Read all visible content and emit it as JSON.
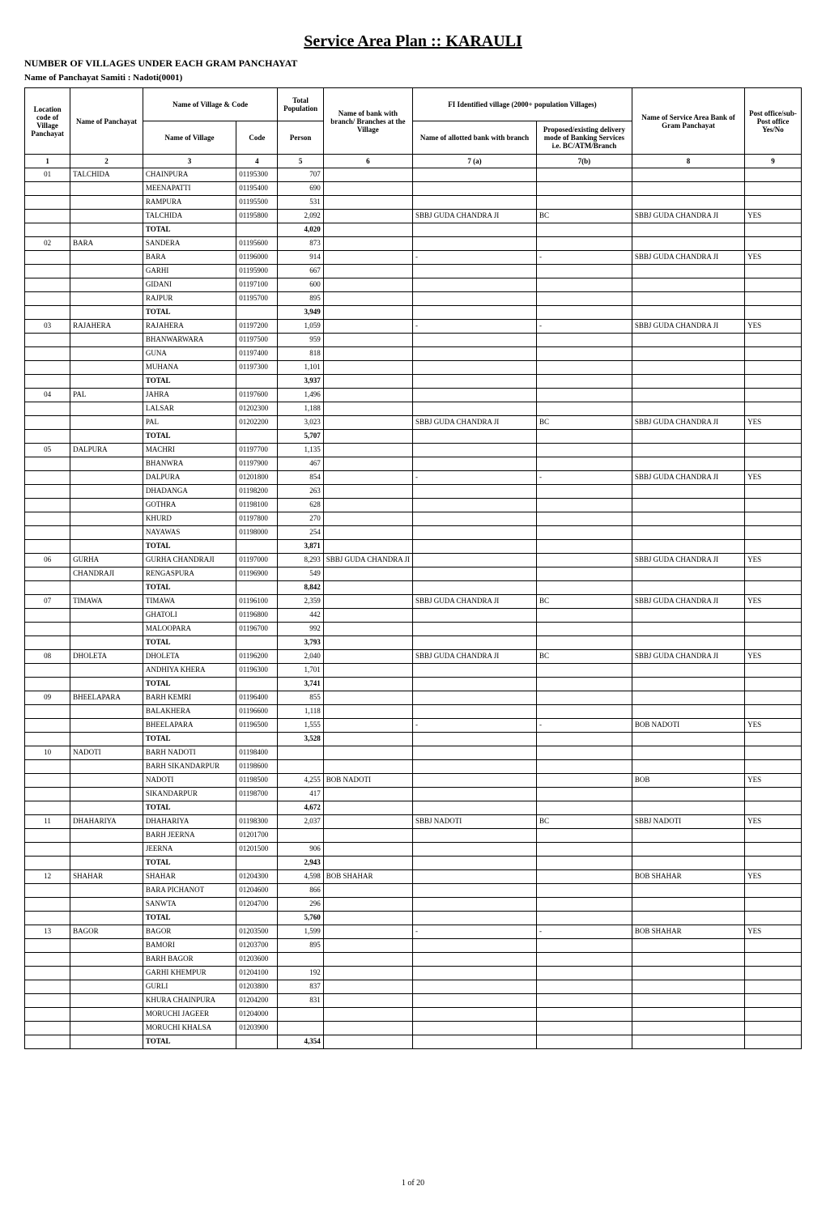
{
  "title": "Service Area Plan :: KARAULI",
  "subtitle": "NUMBER OF VILLAGES UNDER EACH GRAM PANCHAYAT",
  "samiti": "Name of Panchayat Samiti :  Nadoti(0001)",
  "footer": "1 of 20",
  "headers": {
    "h1": "Location code of Village Panchayat",
    "h2": "Name of Panchayat",
    "h34_top": "Name of Village  &  Code",
    "h3": "Name of Village",
    "h4": "Code",
    "h5_top": "Total Population",
    "h5": "Person",
    "h6_top": "Name of  bank with branch/ Branches at the Village",
    "h7_top": "FI Identified village (2000+ population Villages)",
    "h7a": "Name of allotted bank with branch",
    "h7b": "Proposed/existing delivery mode of Banking Services i.e. BC/ATM/Branch",
    "h8_top": "Name of Service Area Bank of Gram Panchayat",
    "h9_top": "Post office/sub-Post office Yes/No",
    "n1": "1",
    "n2": "2",
    "n3": "3",
    "n4": "4",
    "n5": "5",
    "n6": "6",
    "n7a": "7 (a)",
    "n7b": "7(b)",
    "n8": "8",
    "n9": "9"
  },
  "rows": [
    {
      "c1": "01",
      "c2": "TALCHIDA",
      "c3": "CHAINPURA",
      "c4": "01195300",
      "c5": "707",
      "c6": "",
      "c7a": "",
      "c7b": "",
      "c8": "",
      "c9": ""
    },
    {
      "c1": "",
      "c2": "",
      "c3": "MEENAPATTI",
      "c4": "01195400",
      "c5": "690",
      "c6": "",
      "c7a": "",
      "c7b": "",
      "c8": "",
      "c9": ""
    },
    {
      "c1": "",
      "c2": "",
      "c3": "RAMPURA",
      "c4": "01195500",
      "c5": "531",
      "c6": "",
      "c7a": "",
      "c7b": "",
      "c8": "",
      "c9": ""
    },
    {
      "c1": "",
      "c2": "",
      "c3": "TALCHIDA",
      "c4": "01195800",
      "c5": "2,092",
      "c6": "",
      "c7a": "SBBJ GUDA CHANDRA JI",
      "c7b": "BC",
      "c8": "SBBJ GUDA CHANDRA JI",
      "c9": "YES"
    },
    {
      "bold": true,
      "c1": "",
      "c2": "",
      "c3": "TOTAL",
      "c4": "",
      "c5": "4,020",
      "c6": "",
      "c7a": "",
      "c7b": "",
      "c8": "",
      "c9": ""
    },
    {
      "c1": "02",
      "c2": "BARA",
      "c3": "SANDERA",
      "c4": "01195600",
      "c5": "873",
      "c6": "",
      "c7a": "",
      "c7b": "",
      "c8": "",
      "c9": ""
    },
    {
      "c1": "",
      "c2": "",
      "c3": "BARA",
      "c4": "01196000",
      "c5": "914",
      "c6": "",
      "c7a": "-",
      "c7b": "-",
      "c8": "SBBJ GUDA CHANDRA JI",
      "c9": "YES"
    },
    {
      "c1": "",
      "c2": "",
      "c3": "GARHI",
      "c4": "01195900",
      "c5": "667",
      "c6": "",
      "c7a": "",
      "c7b": "",
      "c8": "",
      "c9": ""
    },
    {
      "c1": "",
      "c2": "",
      "c3": "GIDANI",
      "c4": "01197100",
      "c5": "600",
      "c6": "",
      "c7a": "",
      "c7b": "",
      "c8": "",
      "c9": ""
    },
    {
      "c1": "",
      "c2": "",
      "c3": "RAJPUR",
      "c4": "01195700",
      "c5": "895",
      "c6": "",
      "c7a": "",
      "c7b": "",
      "c8": "",
      "c9": ""
    },
    {
      "bold": true,
      "c1": "",
      "c2": "",
      "c3": "TOTAL",
      "c4": "",
      "c5": "3,949",
      "c6": "",
      "c7a": "",
      "c7b": "",
      "c8": "",
      "c9": ""
    },
    {
      "c1": "03",
      "c2": "RAJAHERA",
      "c3": "RAJAHERA",
      "c4": "01197200",
      "c5": "1,059",
      "c6": "",
      "c7a": "-",
      "c7b": "-",
      "c8": "SBBJ GUDA CHANDRA JI",
      "c9": "YES"
    },
    {
      "c1": "",
      "c2": "",
      "c3": "BHANWARWARA",
      "c4": "01197500",
      "c5": "959",
      "c6": "",
      "c7a": "",
      "c7b": "",
      "c8": "",
      "c9": ""
    },
    {
      "c1": "",
      "c2": "",
      "c3": "GUNA",
      "c4": "01197400",
      "c5": "818",
      "c6": "",
      "c7a": "",
      "c7b": "",
      "c8": "",
      "c9": ""
    },
    {
      "c1": "",
      "c2": "",
      "c3": "MUHANA",
      "c4": "01197300",
      "c5": "1,101",
      "c6": "",
      "c7a": "",
      "c7b": "",
      "c8": "",
      "c9": ""
    },
    {
      "bold": true,
      "c1": "",
      "c2": "",
      "c3": "TOTAL",
      "c4": "",
      "c5": "3,937",
      "c6": "",
      "c7a": "",
      "c7b": "",
      "c8": "",
      "c9": ""
    },
    {
      "c1": "04",
      "c2": "PAL",
      "c3": "JAHRA",
      "c4": "01197600",
      "c5": "1,496",
      "c6": "",
      "c7a": "",
      "c7b": "",
      "c8": "",
      "c9": ""
    },
    {
      "c1": "",
      "c2": "",
      "c3": "LALSAR",
      "c4": "01202300",
      "c5": "1,188",
      "c6": "",
      "c7a": "",
      "c7b": "",
      "c8": "",
      "c9": ""
    },
    {
      "c1": "",
      "c2": "",
      "c3": "PAL",
      "c4": "01202200",
      "c5": "3,023",
      "c6": "",
      "c7a": "SBBJ GUDA CHANDRA JI",
      "c7b": "BC",
      "c8": "SBBJ GUDA CHANDRA JI",
      "c9": "YES"
    },
    {
      "bold": true,
      "c1": "",
      "c2": "",
      "c3": "TOTAL",
      "c4": "",
      "c5": "5,707",
      "c6": "",
      "c7a": "",
      "c7b": "",
      "c8": "",
      "c9": ""
    },
    {
      "c1": "05",
      "c2": "DALPURA",
      "c3": "MACHRI",
      "c4": "01197700",
      "c5": "1,135",
      "c6": "",
      "c7a": "",
      "c7b": "",
      "c8": "",
      "c9": ""
    },
    {
      "c1": "",
      "c2": "",
      "c3": "BHANWRA",
      "c4": "01197900",
      "c5": "467",
      "c6": "",
      "c7a": "",
      "c7b": "",
      "c8": "",
      "c9": ""
    },
    {
      "c1": "",
      "c2": "",
      "c3": "DALPURA",
      "c4": "01201800",
      "c5": "854",
      "c6": "",
      "c7a": "-",
      "c7b": "-",
      "c8": "SBBJ GUDA CHANDRA JI",
      "c9": "YES"
    },
    {
      "c1": "",
      "c2": "",
      "c3": "DHADANGA",
      "c4": "01198200",
      "c5": "263",
      "c6": "",
      "c7a": "",
      "c7b": "",
      "c8": "",
      "c9": ""
    },
    {
      "c1": "",
      "c2": "",
      "c3": "GOTHRA",
      "c4": "01198100",
      "c5": "628",
      "c6": "",
      "c7a": "",
      "c7b": "",
      "c8": "",
      "c9": ""
    },
    {
      "c1": "",
      "c2": "",
      "c3": "KHURD",
      "c4": "01197800",
      "c5": "270",
      "c6": "",
      "c7a": "",
      "c7b": "",
      "c8": "",
      "c9": ""
    },
    {
      "c1": "",
      "c2": "",
      "c3": "NAYAWAS",
      "c4": "01198000",
      "c5": "254",
      "c6": "",
      "c7a": "",
      "c7b": "",
      "c8": "",
      "c9": ""
    },
    {
      "bold": true,
      "c1": "",
      "c2": "",
      "c3": "TOTAL",
      "c4": "",
      "c5": "3,871",
      "c6": "",
      "c7a": "",
      "c7b": "",
      "c8": "",
      "c9": ""
    },
    {
      "c1": "06",
      "c2": "GURHA",
      "c3": "GURHA CHANDRAJI",
      "c4": "01197000",
      "c5": "8,293",
      "c6": "SBBJ GUDA CHANDRA JI",
      "c7a": "",
      "c7b": "",
      "c8": "SBBJ GUDA CHANDRA JI",
      "c9": "YES"
    },
    {
      "c1": "",
      "c2": "CHANDRAJI",
      "c3": "RENGASPURA",
      "c4": "01196900",
      "c5": "549",
      "c6": "",
      "c7a": "",
      "c7b": "",
      "c8": "",
      "c9": ""
    },
    {
      "bold": true,
      "c1": "",
      "c2": "",
      "c3": "TOTAL",
      "c4": "",
      "c5": "8,842",
      "c6": "",
      "c7a": "",
      "c7b": "",
      "c8": "",
      "c9": ""
    },
    {
      "c1": "07",
      "c2": "TIMAWA",
      "c3": "TIMAWA",
      "c4": "01196100",
      "c5": "2,359",
      "c6": "",
      "c7a": "SBBJ GUDA CHANDRA JI",
      "c7b": "BC",
      "c8": "SBBJ GUDA CHANDRA JI",
      "c9": "YES"
    },
    {
      "c1": "",
      "c2": "",
      "c3": "GHATOLI",
      "c4": "01196800",
      "c5": "442",
      "c6": "",
      "c7a": "",
      "c7b": "",
      "c8": "",
      "c9": ""
    },
    {
      "c1": "",
      "c2": "",
      "c3": "MALOOPARA",
      "c4": "01196700",
      "c5": "992",
      "c6": "",
      "c7a": "",
      "c7b": "",
      "c8": "",
      "c9": ""
    },
    {
      "bold": true,
      "c1": "",
      "c2": "",
      "c3": "TOTAL",
      "c4": "",
      "c5": "3,793",
      "c6": "",
      "c7a": "",
      "c7b": "",
      "c8": "",
      "c9": ""
    },
    {
      "c1": "08",
      "c2": "DHOLETA",
      "c3": "DHOLETA",
      "c4": "01196200",
      "c5": "2,040",
      "c6": "",
      "c7a": "SBBJ GUDA CHANDRA JI",
      "c7b": "BC",
      "c8": "SBBJ GUDA CHANDRA JI",
      "c9": "YES"
    },
    {
      "c1": "",
      "c2": "",
      "c3": "ANDHIYA KHERA",
      "c4": "01196300",
      "c5": "1,701",
      "c6": "",
      "c7a": "",
      "c7b": "",
      "c8": "",
      "c9": ""
    },
    {
      "bold": true,
      "c1": "",
      "c2": "",
      "c3": "TOTAL",
      "c4": "",
      "c5": "3,741",
      "c6": "",
      "c7a": "",
      "c7b": "",
      "c8": "",
      "c9": ""
    },
    {
      "c1": "09",
      "c2": "BHEELAPARA",
      "c3": "BARH KEMRI",
      "c4": "01196400",
      "c5": "855",
      "c6": "",
      "c7a": "",
      "c7b": "",
      "c8": "",
      "c9": ""
    },
    {
      "c1": "",
      "c2": "",
      "c3": "BALAKHERA",
      "c4": "01196600",
      "c5": "1,118",
      "c6": "",
      "c7a": "",
      "c7b": "",
      "c8": "",
      "c9": ""
    },
    {
      "c1": "",
      "c2": "",
      "c3": "BHEELAPARA",
      "c4": "01196500",
      "c5": "1,555",
      "c6": "",
      "c7a": "-",
      "c7b": "-",
      "c8": "BOB NADOTI",
      "c9": "YES"
    },
    {
      "bold": true,
      "c1": "",
      "c2": "",
      "c3": "TOTAL",
      "c4": "",
      "c5": "3,528",
      "c6": "",
      "c7a": "",
      "c7b": "",
      "c8": "",
      "c9": ""
    },
    {
      "c1": "10",
      "c2": "NADOTI",
      "c3": "BARH NADOTI",
      "c4": "01198400",
      "c5": "",
      "c6": "",
      "c7a": "",
      "c7b": "",
      "c8": "",
      "c9": ""
    },
    {
      "c1": "",
      "c2": "",
      "c3": "BARH SIKANDARPUR",
      "c4": "01198600",
      "c5": "",
      "c6": "",
      "c7a": "",
      "c7b": "",
      "c8": "",
      "c9": ""
    },
    {
      "c1": "",
      "c2": "",
      "c3": "NADOTI",
      "c4": "01198500",
      "c5": "4,255",
      "c6": "BOB NADOTI",
      "c7a": "",
      "c7b": "",
      "c8": "BOB",
      "c9": "YES"
    },
    {
      "c1": "",
      "c2": "",
      "c3": "SIKANDARPUR",
      "c4": "01198700",
      "c5": "417",
      "c6": "",
      "c7a": "",
      "c7b": "",
      "c8": "",
      "c9": ""
    },
    {
      "bold": true,
      "c1": "",
      "c2": "",
      "c3": "TOTAL",
      "c4": "",
      "c5": "4,672",
      "c6": "",
      "c7a": "",
      "c7b": "",
      "c8": "",
      "c9": ""
    },
    {
      "c1": "11",
      "c2": "DHAHARIYA",
      "c3": "DHAHARIYA",
      "c4": "01198300",
      "c5": "2,037",
      "c6": "",
      "c7a": "SBBJ NADOTI",
      "c7b": "BC",
      "c8": "SBBJ NADOTI",
      "c9": "YES"
    },
    {
      "c1": "",
      "c2": "",
      "c3": "BARH JEERNA",
      "c4": "01201700",
      "c5": "",
      "c6": "",
      "c7a": "",
      "c7b": "",
      "c8": "",
      "c9": ""
    },
    {
      "c1": "",
      "c2": "",
      "c3": "JEERNA",
      "c4": "01201500",
      "c5": "906",
      "c6": "",
      "c7a": "",
      "c7b": "",
      "c8": "",
      "c9": ""
    },
    {
      "bold": true,
      "c1": "",
      "c2": "",
      "c3": "TOTAL",
      "c4": "",
      "c5": "2,943",
      "c6": "",
      "c7a": "",
      "c7b": "",
      "c8": "",
      "c9": ""
    },
    {
      "c1": "12",
      "c2": "SHAHAR",
      "c3": "SHAHAR",
      "c4": "01204300",
      "c5": "4,598",
      "c6": "BOB SHAHAR",
      "c7a": "",
      "c7b": "",
      "c8": "BOB SHAHAR",
      "c9": "YES"
    },
    {
      "c1": "",
      "c2": "",
      "c3": "BARA PICHANOT",
      "c4": "01204600",
      "c5": "866",
      "c6": "",
      "c7a": "",
      "c7b": "",
      "c8": "",
      "c9": ""
    },
    {
      "c1": "",
      "c2": "",
      "c3": "SANWTA",
      "c4": "01204700",
      "c5": "296",
      "c6": "",
      "c7a": "",
      "c7b": "",
      "c8": "",
      "c9": ""
    },
    {
      "bold": true,
      "c1": "",
      "c2": "",
      "c3": "TOTAL",
      "c4": "",
      "c5": "5,760",
      "c6": "",
      "c7a": "",
      "c7b": "",
      "c8": "",
      "c9": ""
    },
    {
      "c1": "13",
      "c2": "BAGOR",
      "c3": "BAGOR",
      "c4": "01203500",
      "c5": "1,599",
      "c6": "",
      "c7a": "-",
      "c7b": "-",
      "c8": "BOB SHAHAR",
      "c9": "YES"
    },
    {
      "c1": "",
      "c2": "",
      "c3": "BAMORI",
      "c4": "01203700",
      "c5": "895",
      "c6": "",
      "c7a": "",
      "c7b": "",
      "c8": "",
      "c9": ""
    },
    {
      "c1": "",
      "c2": "",
      "c3": "BARH BAGOR",
      "c4": "01203600",
      "c5": "",
      "c6": "",
      "c7a": "",
      "c7b": "",
      "c8": "",
      "c9": ""
    },
    {
      "c1": "",
      "c2": "",
      "c3": "GARHI KHEMPUR",
      "c4": "01204100",
      "c5": "192",
      "c6": "",
      "c7a": "",
      "c7b": "",
      "c8": "",
      "c9": ""
    },
    {
      "c1": "",
      "c2": "",
      "c3": "GURLI",
      "c4": "01203800",
      "c5": "837",
      "c6": "",
      "c7a": "",
      "c7b": "",
      "c8": "",
      "c9": ""
    },
    {
      "c1": "",
      "c2": "",
      "c3": "KHURA CHAINPURA",
      "c4": "01204200",
      "c5": "831",
      "c6": "",
      "c7a": "",
      "c7b": "",
      "c8": "",
      "c9": ""
    },
    {
      "c1": "",
      "c2": "",
      "c3": "MORUCHI JAGEER",
      "c4": "01204000",
      "c5": "",
      "c6": "",
      "c7a": "",
      "c7b": "",
      "c8": "",
      "c9": ""
    },
    {
      "c1": "",
      "c2": "",
      "c3": "MORUCHI KHALSA",
      "c4": "01203900",
      "c5": "",
      "c6": "",
      "c7a": "",
      "c7b": "",
      "c8": "",
      "c9": ""
    },
    {
      "bold": true,
      "c1": "",
      "c2": "",
      "c3": "TOTAL",
      "c4": "",
      "c5": "4,354",
      "c6": "",
      "c7a": "",
      "c7b": "",
      "c8": "",
      "c9": ""
    }
  ]
}
